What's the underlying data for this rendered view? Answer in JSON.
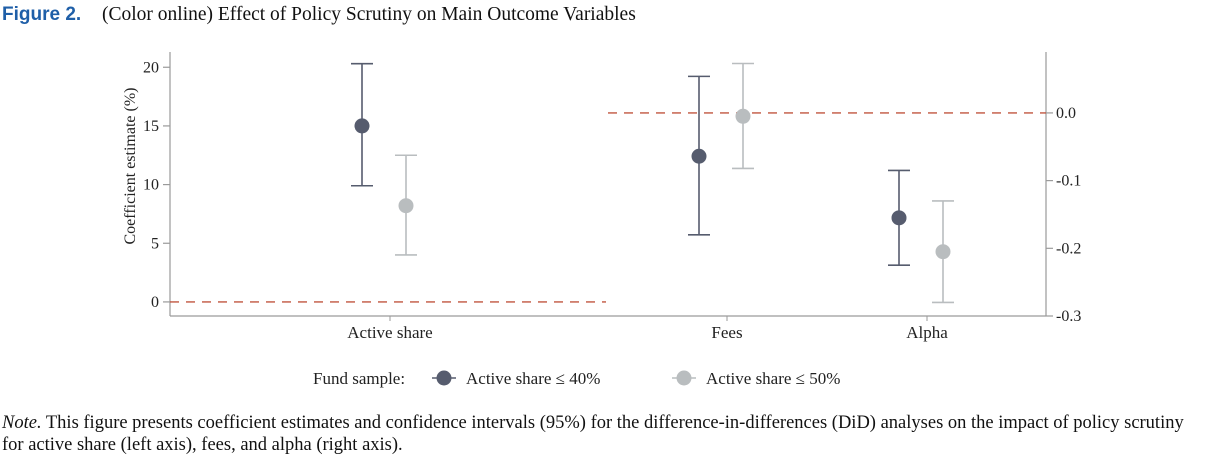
{
  "figure": {
    "label": "Figure 2.",
    "title": "(Color online) Effect of Policy Scrutiny on Main Outcome Variables"
  },
  "note": {
    "label": "Note.",
    "text": "This figure presents coefficient estimates and confidence intervals (95%) for the difference-in-differences (DiD) analyses on the impact of policy scrutiny for active share (left axis), fees, and alpha (right axis)."
  },
  "colors": {
    "series_dark": "#565c6e",
    "series_light": "#b9bdbf",
    "zero_line": "#c0553f",
    "axis": "#9a9a9a"
  },
  "chart_data": {
    "type": "scatter",
    "categories": [
      "Active share",
      "Fees",
      "Alpha"
    ],
    "left_axis": {
      "label": "Coefficient estimate (%)",
      "ylim": [
        -1.2,
        21.3
      ],
      "ticks": [
        0,
        5,
        10,
        15,
        20
      ],
      "tick_labels": [
        "0",
        "5",
        "10",
        "15",
        "20"
      ],
      "applies_to": [
        "Active share"
      ]
    },
    "right_axis": {
      "label": "",
      "ylim": [
        -0.3,
        0.09
      ],
      "ticks": [
        0.0,
        -0.1,
        -0.2,
        -0.3
      ],
      "tick_labels": [
        "0.0",
        "-0.1",
        "-0.2",
        "-0.3"
      ],
      "applies_to": [
        "Fees",
        "Alpha"
      ]
    },
    "zero_reference_lines": true,
    "legend": {
      "title": "Fund sample:",
      "placement": "bottom"
    },
    "series": [
      {
        "name": "Active share ≤ 40%",
        "color_key": "series_dark",
        "points": [
          {
            "category": "Active share",
            "axis": "left",
            "estimate": 15.0,
            "ci_low": 9.9,
            "ci_high": 20.3
          },
          {
            "category": "Fees",
            "axis": "right",
            "estimate": -0.064,
            "ci_low": -0.18,
            "ci_high": 0.054
          },
          {
            "category": "Alpha",
            "axis": "right",
            "estimate": -0.155,
            "ci_low": -0.225,
            "ci_high": -0.085
          }
        ]
      },
      {
        "name": "Active share ≤ 50%",
        "color_key": "series_light",
        "points": [
          {
            "category": "Active share",
            "axis": "left",
            "estimate": 8.2,
            "ci_low": 4.0,
            "ci_high": 12.5
          },
          {
            "category": "Fees",
            "axis": "right",
            "estimate": -0.005,
            "ci_low": -0.082,
            "ci_high": 0.073
          },
          {
            "category": "Alpha",
            "axis": "right",
            "estimate": -0.205,
            "ci_low": -0.28,
            "ci_high": -0.13
          }
        ]
      }
    ]
  }
}
